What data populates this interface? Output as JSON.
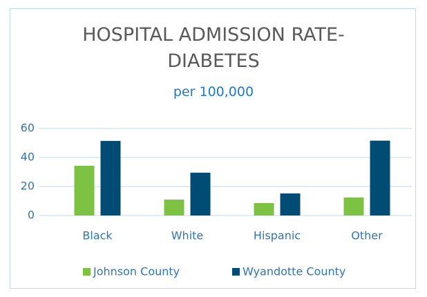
{
  "chart_data": {
    "type": "bar",
    "title": "HOSPITAL ADMISSION RATE-DIABETES",
    "subtitle": "per 100,000",
    "categories": [
      "Black",
      "White",
      "Hispanic",
      "Other"
    ],
    "series": [
      {
        "name": "Johnson County",
        "color": "#7dc242",
        "values": [
          34.3,
          11,
          8.6,
          12.4
        ]
      },
      {
        "name": "Wyandotte County",
        "color": "#004c75",
        "values": [
          51.4,
          29.5,
          15.2,
          51.6
        ]
      }
    ],
    "ylim": [
      0,
      60
    ],
    "yticks": [
      0,
      20,
      40,
      60
    ],
    "grid": true,
    "legend": "bottom"
  }
}
